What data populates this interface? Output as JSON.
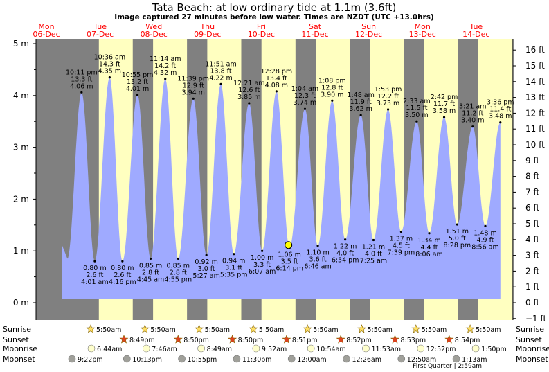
{
  "header": {
    "title": "Tata Beach: at low  ordinary tide at 1.1m (3.6ft)",
    "subtitle": "Image captured 27 minutes before low water. Times are NZDT (UTC +13.0hrs)"
  },
  "colors": {
    "day_bg": "#ffffc0",
    "night_bg": "#808080",
    "tide_fill": "#9faaff",
    "header_red": "#ff0000",
    "marker": "#ffff00"
  },
  "chart_data": {
    "type": "area",
    "days": [
      {
        "dow": "Mon",
        "date": "06-Dec"
      },
      {
        "dow": "Tue",
        "date": "07-Dec"
      },
      {
        "dow": "Wed",
        "date": "08-Dec"
      },
      {
        "dow": "Thu",
        "date": "09-Dec"
      },
      {
        "dow": "Fri",
        "date": "10-Dec"
      },
      {
        "dow": "Sat",
        "date": "11-Dec"
      },
      {
        "dow": "Sun",
        "date": "12-Dec"
      },
      {
        "dow": "Mon",
        "date": "13-Dec"
      },
      {
        "dow": "Tue",
        "date": "14-Dec"
      }
    ],
    "y_left": {
      "unit": "m",
      "ticks": [
        "0 m",
        "1 m",
        "2 m",
        "3 m",
        "4 m",
        "5 m"
      ],
      "range_m": [
        -0.3,
        5.2
      ]
    },
    "y_right": {
      "unit": "ft",
      "ticks": [
        "−1 ft",
        "0 ft",
        "1 ft",
        "2 ft",
        "3 ft",
        "4 ft",
        "5 ft",
        "6 ft",
        "7 ft",
        "8 ft",
        "9 ft",
        "10 ft",
        "11 ft",
        "12 ft",
        "13 ft",
        "14 ft",
        "15 ft",
        "16 ft"
      ]
    },
    "tides": [
      {
        "kind": "high",
        "day": 0,
        "time": "10:11 pm",
        "ft": "13.3 ft",
        "m": 4.06,
        "hour": 22.18
      },
      {
        "kind": "low",
        "day": 1,
        "time": "4:01 am",
        "ft": "2.6 ft",
        "m": 0.8,
        "hour": 4.02
      },
      {
        "kind": "high",
        "day": 1,
        "time": "10:36 am",
        "ft": "14.3 ft",
        "m": 4.35,
        "hour": 10.6
      },
      {
        "kind": "low",
        "day": 1,
        "time": "4:16 pm",
        "ft": "2.6 ft",
        "m": 0.8,
        "hour": 16.27
      },
      {
        "kind": "high",
        "day": 1,
        "time": "10:55 pm",
        "ft": "13.2 ft",
        "m": 4.01,
        "hour": 22.92
      },
      {
        "kind": "low",
        "day": 2,
        "time": "4:45 am",
        "ft": "2.8 ft",
        "m": 0.85,
        "hour": 4.75
      },
      {
        "kind": "high",
        "day": 2,
        "time": "11:14 am",
        "ft": "14.2 ft",
        "m": 4.32,
        "hour": 11.23
      },
      {
        "kind": "low",
        "day": 2,
        "time": "4:55 pm",
        "ft": "2.8 ft",
        "m": 0.85,
        "hour": 16.92
      },
      {
        "kind": "high",
        "day": 2,
        "time": "11:39 pm",
        "ft": "12.9 ft",
        "m": 3.94,
        "hour": 23.65
      },
      {
        "kind": "low",
        "day": 3,
        "time": "5:27 am",
        "ft": "3.0 ft",
        "m": 0.92,
        "hour": 5.45
      },
      {
        "kind": "high",
        "day": 3,
        "time": "11:51 am",
        "ft": "13.8 ft",
        "m": 4.22,
        "hour": 11.85
      },
      {
        "kind": "low",
        "day": 3,
        "time": "5:35 pm",
        "ft": "3.1 ft",
        "m": 0.94,
        "hour": 17.58
      },
      {
        "kind": "high",
        "day": 4,
        "time": "12:21 am",
        "ft": "12.6 ft",
        "m": 3.85,
        "hour": 0.35
      },
      {
        "kind": "low",
        "day": 4,
        "time": "6:07 am",
        "ft": "3.3 ft",
        "m": 1.0,
        "hour": 6.12
      },
      {
        "kind": "high",
        "day": 4,
        "time": "12:28 pm",
        "ft": "13.4 ft",
        "m": 4.08,
        "hour": 12.47
      },
      {
        "kind": "low",
        "day": 4,
        "time": "6:14 pm",
        "ft": "3.5 ft",
        "m": 1.06,
        "hour": 18.23
      },
      {
        "kind": "high",
        "day": 5,
        "time": "1:04 am",
        "ft": "12.3 ft",
        "m": 3.74,
        "hour": 1.07
      },
      {
        "kind": "low",
        "day": 5,
        "time": "6:46 am",
        "ft": "3.6 ft",
        "m": 1.1,
        "hour": 6.77
      },
      {
        "kind": "high",
        "day": 5,
        "time": "1:08 pm",
        "ft": "12.8 ft",
        "m": 3.9,
        "hour": 13.13
      },
      {
        "kind": "low",
        "day": 5,
        "time": "6:54 pm",
        "ft": "4.0 ft",
        "m": 1.22,
        "hour": 18.9
      },
      {
        "kind": "high",
        "day": 6,
        "time": "1:48 am",
        "ft": "11.9 ft",
        "m": 3.62,
        "hour": 1.8
      },
      {
        "kind": "low",
        "day": 6,
        "time": "7:25 am",
        "ft": "4.0 ft",
        "m": 1.21,
        "hour": 7.42
      },
      {
        "kind": "high",
        "day": 6,
        "time": "1:53 pm",
        "ft": "12.2 ft",
        "m": 3.73,
        "hour": 13.88
      },
      {
        "kind": "low",
        "day": 6,
        "time": "7:39 pm",
        "ft": "4.5 ft",
        "m": 1.37,
        "hour": 19.65
      },
      {
        "kind": "high",
        "day": 7,
        "time": "2:33 am",
        "ft": "11.5 ft",
        "m": 3.5,
        "hour": 2.55
      },
      {
        "kind": "low",
        "day": 7,
        "time": "8:06 am",
        "ft": "4.4 ft",
        "m": 1.34,
        "hour": 8.1
      },
      {
        "kind": "high",
        "day": 7,
        "time": "2:42 pm",
        "ft": "11.7 ft",
        "m": 3.58,
        "hour": 14.7
      },
      {
        "kind": "low",
        "day": 7,
        "time": "8:28 pm",
        "ft": "5.0 ft",
        "m": 1.51,
        "hour": 20.47
      },
      {
        "kind": "high",
        "day": 8,
        "time": "3:21 am",
        "ft": "11.2 ft",
        "m": 3.4,
        "hour": 3.35
      },
      {
        "kind": "low",
        "day": 8,
        "time": "8:56 am",
        "ft": "4.9 ft",
        "m": 1.48,
        "hour": 8.93
      },
      {
        "kind": "high",
        "day": 8,
        "time": "3:36 pm",
        "ft": "11.4 ft",
        "m": 3.48,
        "hour": 15.6
      }
    ],
    "current": {
      "day": 4,
      "hour": 17.78,
      "m": 1.1
    },
    "sunrise": [
      "5:50am",
      "5:50am",
      "5:50am",
      "5:50am",
      "5:50am",
      "5:50am",
      "5:50am",
      "5:50am"
    ],
    "sunset": [
      "8:49pm",
      "8:50pm",
      "8:50pm",
      "8:51pm",
      "8:52pm",
      "8:53pm",
      "8:54pm"
    ],
    "moonrise": [
      "6:44am",
      "7:46am",
      "8:49am",
      "9:52am",
      "10:54am",
      "11:53am",
      "12:52pm",
      "1:50pm"
    ],
    "moonset": [
      "9:22pm",
      "10:13pm",
      "10:55pm",
      "11:30pm",
      "12:00am",
      "12:26am",
      "12:50am",
      "1:13am"
    ],
    "moon_phase": "First Quarter | 2:59am",
    "row_labels": {
      "sunrise": "Sunrise",
      "sunset": "Sunset",
      "moonrise": "Moonrise",
      "moonset": "Moonset"
    }
  }
}
